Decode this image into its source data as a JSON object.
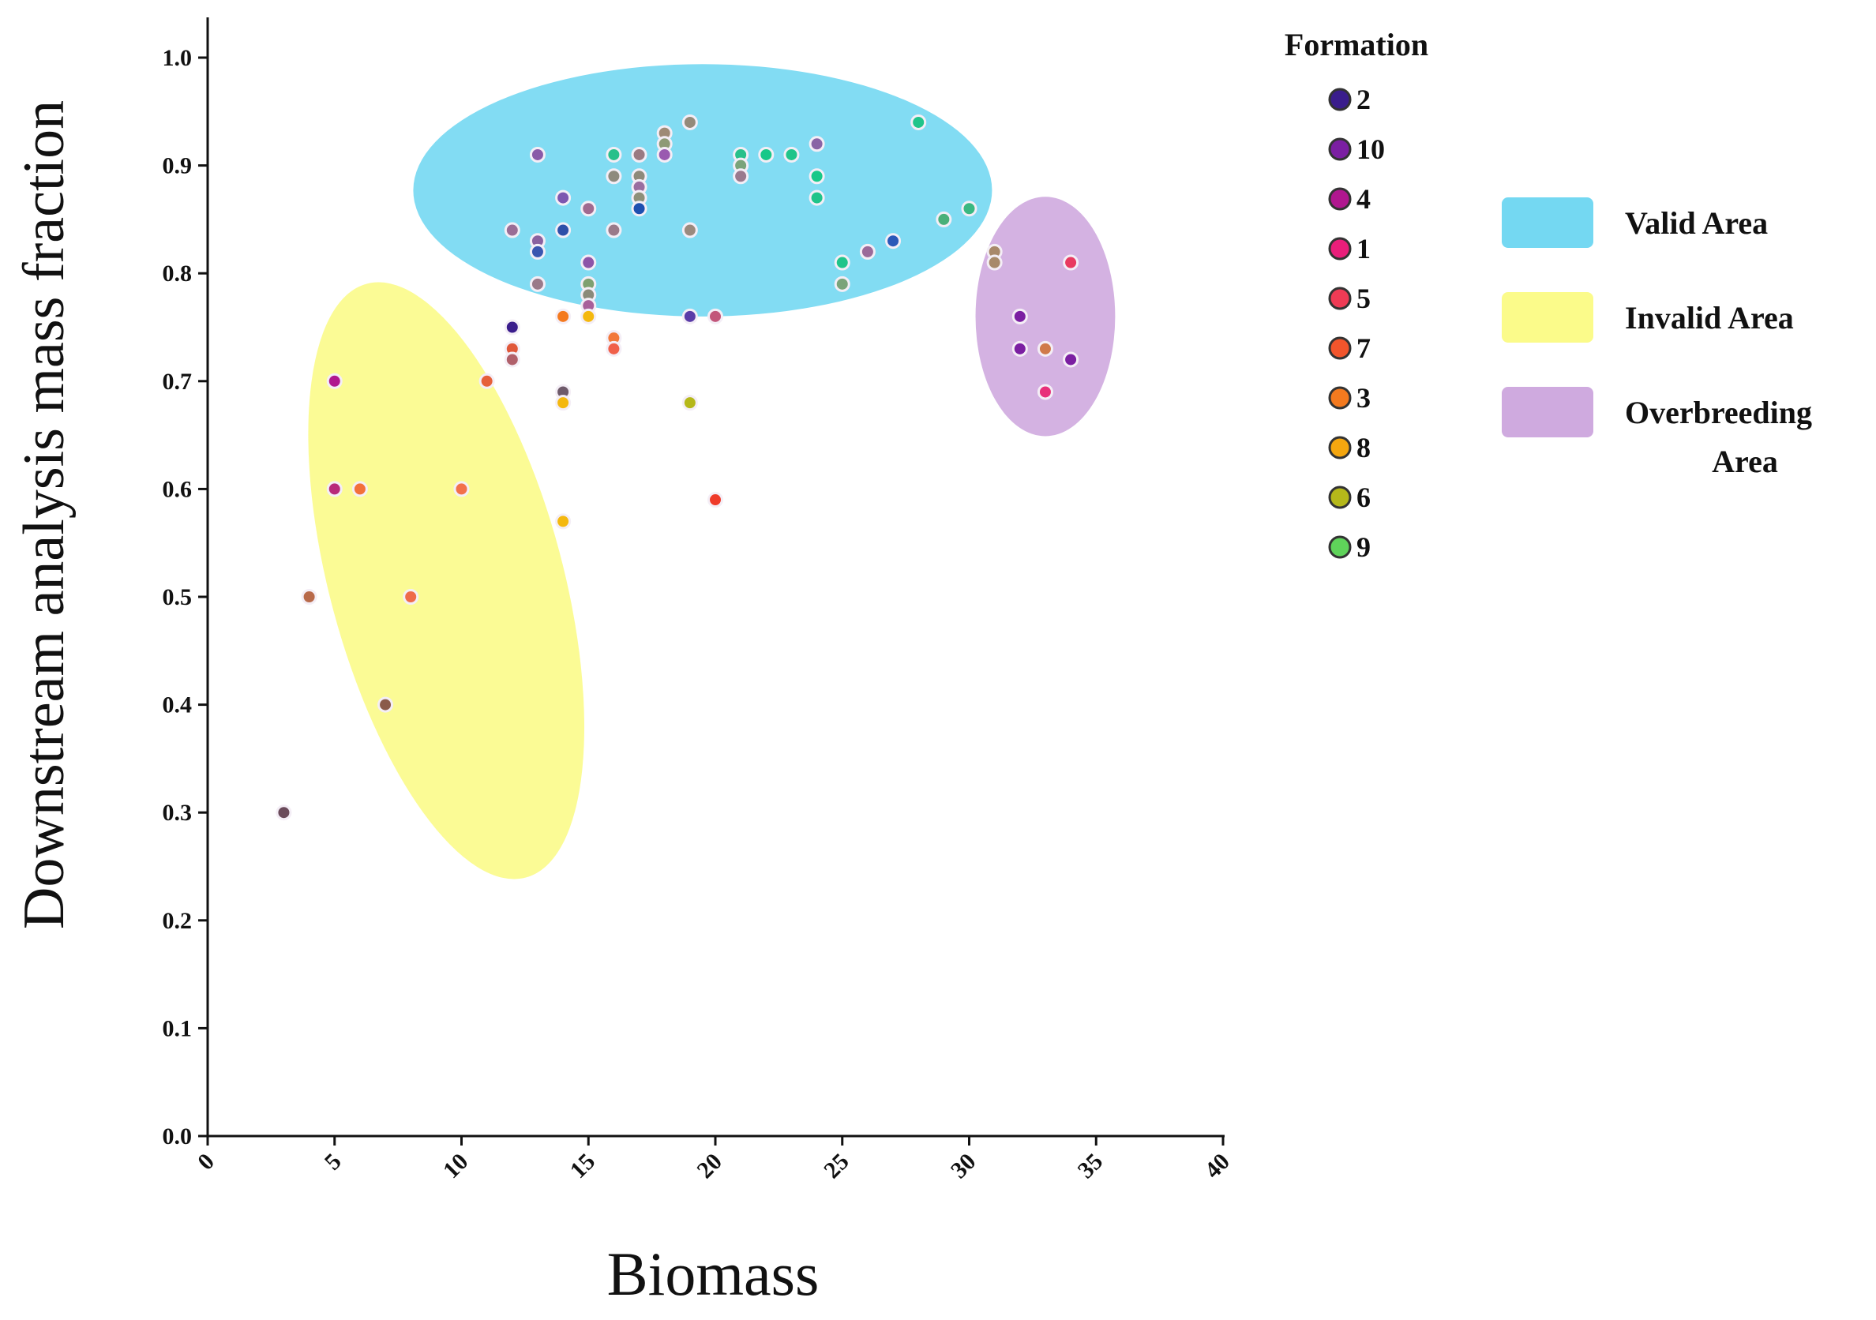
{
  "chart_data": {
    "type": "scatter",
    "title": "",
    "xlabel": "Biomass",
    "ylabel": "Downstream analysis mass fraction",
    "xlim": [
      0,
      40
    ],
    "ylim": [
      0,
      1.0
    ],
    "x_ticks": [
      "0",
      "5",
      "10",
      "15",
      "20",
      "25",
      "30",
      "35",
      "40"
    ],
    "y_ticks": [
      "0.0",
      "0.1",
      "0.2",
      "0.3",
      "0.4",
      "0.5",
      "0.6",
      "0.7",
      "0.8",
      "0.9",
      "1.0"
    ],
    "grid": false,
    "legend_title": "Formation",
    "legend": [
      {
        "label": "2",
        "color": "#3a1d8c"
      },
      {
        "label": "10",
        "color": "#7b1fa2"
      },
      {
        "label": "4",
        "color": "#b0178f"
      },
      {
        "label": "1",
        "color": "#e91e7a"
      },
      {
        "label": "5",
        "color": "#ef3b55"
      },
      {
        "label": "7",
        "color": "#f2552c"
      },
      {
        "label": "3",
        "color": "#f47a1f"
      },
      {
        "label": "8",
        "color": "#f4a60f"
      },
      {
        "label": "6",
        "color": "#b5b81a"
      },
      {
        "label": "9",
        "color": "#5fd35a"
      }
    ],
    "regions": [
      {
        "name": "Valid Area",
        "color": "#74d8f2",
        "label": "Valid Area",
        "cx": 19.5,
        "cy": 0.877,
        "rx": 11.4,
        "ry": 0.117,
        "angle": 0
      },
      {
        "name": "Invalid Area",
        "color": "#fbfb8a",
        "label": "Invalid Area",
        "cx": 9.4,
        "cy": 0.515,
        "rx": 4.6,
        "ry": 0.285,
        "angle": -15
      },
      {
        "name": "Overbreeding Area",
        "color": "#cfaadf",
        "label": "Overbreeding Area",
        "cx": 33.0,
        "cy": 0.76,
        "rx": 2.75,
        "ry": 0.111,
        "angle": 0
      }
    ],
    "region_legend": [
      {
        "label": "Valid Area",
        "color": "#74d8f2"
      },
      {
        "label": "Invalid Area",
        "color": "#fbfb8a"
      },
      {
        "label_lines": [
          "Overbreeding",
          "Area"
        ],
        "color": "#cfaadf"
      }
    ],
    "points": [
      {
        "x": 13,
        "y": 0.91,
        "color": "#8a5aa8"
      },
      {
        "x": 14,
        "y": 0.87,
        "color": "#7d57b0"
      },
      {
        "x": 14,
        "y": 0.84,
        "color": "#2e4fa8"
      },
      {
        "x": 13,
        "y": 0.83,
        "color": "#8a62a0"
      },
      {
        "x": 13,
        "y": 0.82,
        "color": "#3a56b0"
      },
      {
        "x": 12,
        "y": 0.84,
        "color": "#9a6e96"
      },
      {
        "x": 13,
        "y": 0.79,
        "color": "#9a7a8a"
      },
      {
        "x": 15,
        "y": 0.86,
        "color": "#a06a90"
      },
      {
        "x": 15,
        "y": 0.81,
        "color": "#8c55a8"
      },
      {
        "x": 15,
        "y": 0.79,
        "color": "#7ea070"
      },
      {
        "x": 15,
        "y": 0.78,
        "color": "#8a8a7a"
      },
      {
        "x": 15,
        "y": 0.77,
        "color": "#a8609a"
      },
      {
        "x": 16,
        "y": 0.91,
        "color": "#28c08a"
      },
      {
        "x": 16,
        "y": 0.89,
        "color": "#8e8a7e"
      },
      {
        "x": 16,
        "y": 0.84,
        "color": "#9a7a8a"
      },
      {
        "x": 17,
        "y": 0.91,
        "color": "#9a7a82"
      },
      {
        "x": 17,
        "y": 0.89,
        "color": "#8e8a7a"
      },
      {
        "x": 17,
        "y": 0.88,
        "color": "#9a6ea0"
      },
      {
        "x": 17,
        "y": 0.87,
        "color": "#8e907a"
      },
      {
        "x": 17,
        "y": 0.86,
        "color": "#1e50b0"
      },
      {
        "x": 18,
        "y": 0.93,
        "color": "#9e8a76"
      },
      {
        "x": 18,
        "y": 0.92,
        "color": "#8e9a76"
      },
      {
        "x": 18,
        "y": 0.91,
        "color": "#9a5ab0"
      },
      {
        "x": 19,
        "y": 0.94,
        "color": "#948a7a"
      },
      {
        "x": 19,
        "y": 0.84,
        "color": "#9a8a7e"
      },
      {
        "x": 19,
        "y": 0.76,
        "color": "#5a3ca8"
      },
      {
        "x": 20,
        "y": 0.76,
        "color": "#c2567a"
      },
      {
        "x": 21,
        "y": 0.91,
        "color": "#28c08a"
      },
      {
        "x": 21,
        "y": 0.9,
        "color": "#7aa47a"
      },
      {
        "x": 21,
        "y": 0.89,
        "color": "#9a7a8e"
      },
      {
        "x": 22,
        "y": 0.91,
        "color": "#18c888"
      },
      {
        "x": 23,
        "y": 0.91,
        "color": "#20c48a"
      },
      {
        "x": 24,
        "y": 0.92,
        "color": "#8a64a6"
      },
      {
        "x": 24,
        "y": 0.89,
        "color": "#18c888"
      },
      {
        "x": 24,
        "y": 0.87,
        "color": "#20c48a"
      },
      {
        "x": 25,
        "y": 0.81,
        "color": "#20c48a"
      },
      {
        "x": 25,
        "y": 0.79,
        "color": "#7aa47a"
      },
      {
        "x": 26,
        "y": 0.82,
        "color": "#9a6a9a"
      },
      {
        "x": 27,
        "y": 0.83,
        "color": "#2a58b8"
      },
      {
        "x": 28,
        "y": 0.94,
        "color": "#20c48a"
      },
      {
        "x": 29,
        "y": 0.85,
        "color": "#4ab07a"
      },
      {
        "x": 30,
        "y": 0.86,
        "color": "#3ab882"
      },
      {
        "x": 31,
        "y": 0.82,
        "color": "#a8886a"
      },
      {
        "x": 31,
        "y": 0.81,
        "color": "#a88a6a"
      },
      {
        "x": 32,
        "y": 0.76,
        "color": "#7b1fa2"
      },
      {
        "x": 32,
        "y": 0.73,
        "color": "#7b1fa2"
      },
      {
        "x": 33,
        "y": 0.73,
        "color": "#d07a4a"
      },
      {
        "x": 33,
        "y": 0.69,
        "color": "#e8307a"
      },
      {
        "x": 34,
        "y": 0.81,
        "color": "#e83a60"
      },
      {
        "x": 34,
        "y": 0.72,
        "color": "#7b1fa2"
      },
      {
        "x": 12,
        "y": 0.75,
        "color": "#3a1d8c"
      },
      {
        "x": 12,
        "y": 0.73,
        "color": "#e0583a"
      },
      {
        "x": 12,
        "y": 0.72,
        "color": "#b0606a"
      },
      {
        "x": 14,
        "y": 0.76,
        "color": "#f47a1f"
      },
      {
        "x": 14,
        "y": 0.69,
        "color": "#6e5a6a"
      },
      {
        "x": 14,
        "y": 0.68,
        "color": "#f4b80f"
      },
      {
        "x": 14,
        "y": 0.57,
        "color": "#f4b80f"
      },
      {
        "x": 15,
        "y": 0.76,
        "color": "#f4b80f"
      },
      {
        "x": 16,
        "y": 0.74,
        "color": "#f2783a"
      },
      {
        "x": 16,
        "y": 0.73,
        "color": "#f0604a"
      },
      {
        "x": 19,
        "y": 0.68,
        "color": "#b5b81a"
      },
      {
        "x": 20,
        "y": 0.59,
        "color": "#ef3b2a"
      },
      {
        "x": 11,
        "y": 0.7,
        "color": "#e6603a"
      },
      {
        "x": 10,
        "y": 0.6,
        "color": "#f2704a"
      },
      {
        "x": 6,
        "y": 0.6,
        "color": "#f2703a"
      },
      {
        "x": 5,
        "y": 0.7,
        "color": "#b0178f"
      },
      {
        "x": 5,
        "y": 0.6,
        "color": "#b82a7a"
      },
      {
        "x": 4,
        "y": 0.5,
        "color": "#b86a4a"
      },
      {
        "x": 8,
        "y": 0.5,
        "color": "#ee6a4a"
      },
      {
        "x": 7,
        "y": 0.4,
        "color": "#8a5a4a"
      },
      {
        "x": 3,
        "y": 0.3,
        "color": "#6a4a5a"
      }
    ]
  }
}
